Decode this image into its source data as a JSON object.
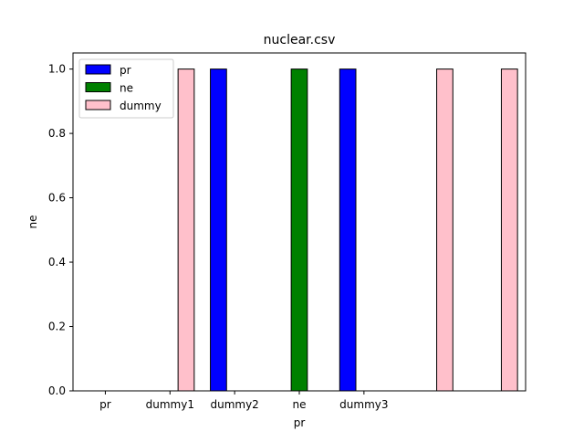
{
  "chart_data": {
    "type": "bar",
    "title": "nuclear.csv",
    "xlabel": "pr",
    "ylabel": "ne",
    "slots": 7,
    "tick_labels": [
      "pr",
      "dummy1",
      "dummy2",
      "ne",
      "dummy3"
    ],
    "ylim": [
      0,
      1.05
    ],
    "yticks": [
      0.0,
      0.2,
      0.4,
      0.6,
      0.8,
      1.0
    ],
    "ytick_labels": [
      "0.0",
      "0.2",
      "0.4",
      "0.6",
      "0.8",
      "1.0"
    ],
    "grid": false,
    "legend": "upper-left",
    "series": [
      {
        "name": "pr",
        "color": "#0000ff",
        "values": [
          0,
          0,
          1,
          0,
          1,
          0,
          0
        ]
      },
      {
        "name": "ne",
        "color": "#008000",
        "values": [
          0,
          0,
          0,
          1,
          0,
          0,
          0
        ]
      },
      {
        "name": "dummy",
        "color": "#ffc0cb",
        "values": [
          0,
          1,
          0,
          0,
          0,
          1,
          1
        ]
      }
    ]
  }
}
